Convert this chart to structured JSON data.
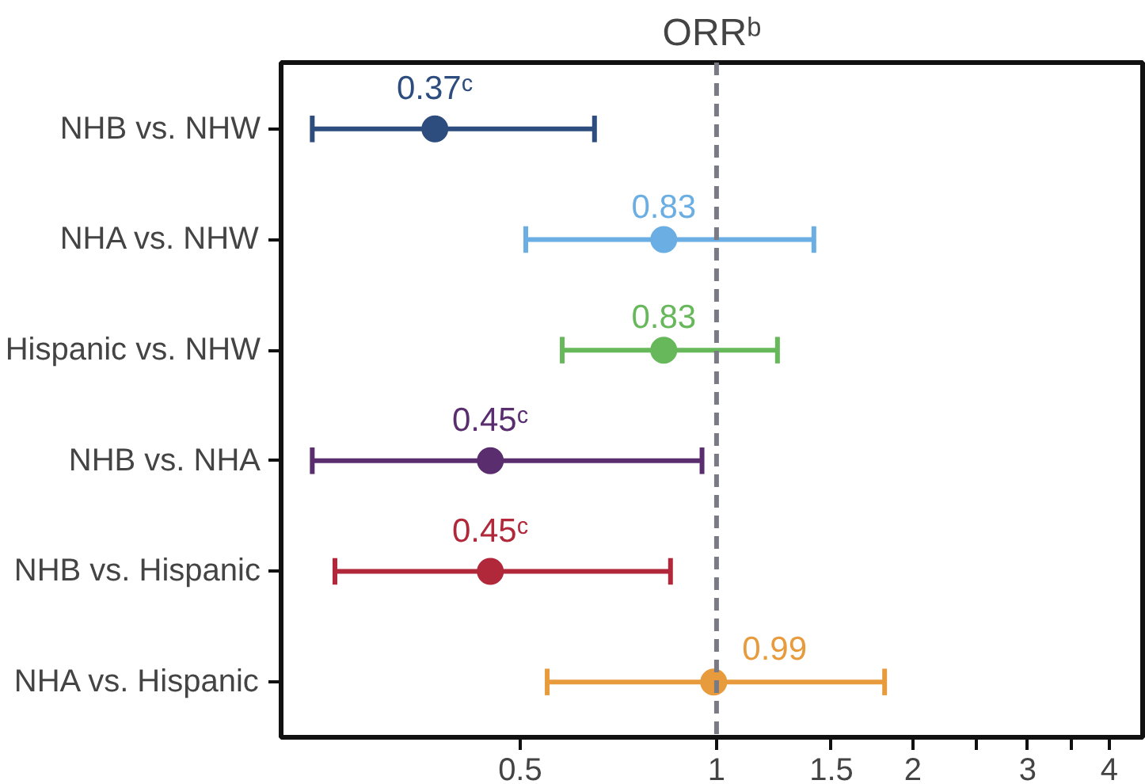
{
  "chart_data": {
    "type": "scatter",
    "title": "ORRᵇ",
    "orientation": "horizontal",
    "log": "x",
    "categories": [
      "NHB vs. NHW",
      "NHA vs. NHW",
      "Hispanic vs. NHW",
      "NHB vs. NHA",
      "NHB vs. Hispanic",
      "NHA vs. Hispanic"
    ],
    "values": [
      0.37,
      0.83,
      0.83,
      0.45,
      0.45,
      0.99
    ],
    "errors": [
      [
        0.24,
        0.65
      ],
      [
        0.51,
        1.41
      ],
      [
        0.58,
        1.24
      ],
      [
        0.24,
        0.95
      ],
      [
        0.26,
        0.85
      ],
      [
        0.55,
        1.81
      ]
    ],
    "colors": [
      "#2e4d7f",
      "#6aaee3",
      "#66b85a",
      "#5a2d6e",
      "#b0283a",
      "#e89b3d"
    ],
    "value_labels": [
      "0.37ᶜ",
      "0.83",
      "0.83",
      "0.45ᶜ",
      "0.45ᶜ",
      "0.99"
    ],
    "xlim": [
      0.215,
      4.5
    ],
    "xticks": [
      0.5,
      1,
      1.5,
      2,
      {
        "value": 2.5,
        "label": null
      },
      3,
      {
        "value": 3.5,
        "label": null
      },
      4
    ],
    "ref_lines": [
      {
        "axis": "x",
        "value": 1,
        "color": "#7a7a85",
        "line_style": "dashed"
      }
    ],
    "marker": "circle",
    "grid": false
  }
}
